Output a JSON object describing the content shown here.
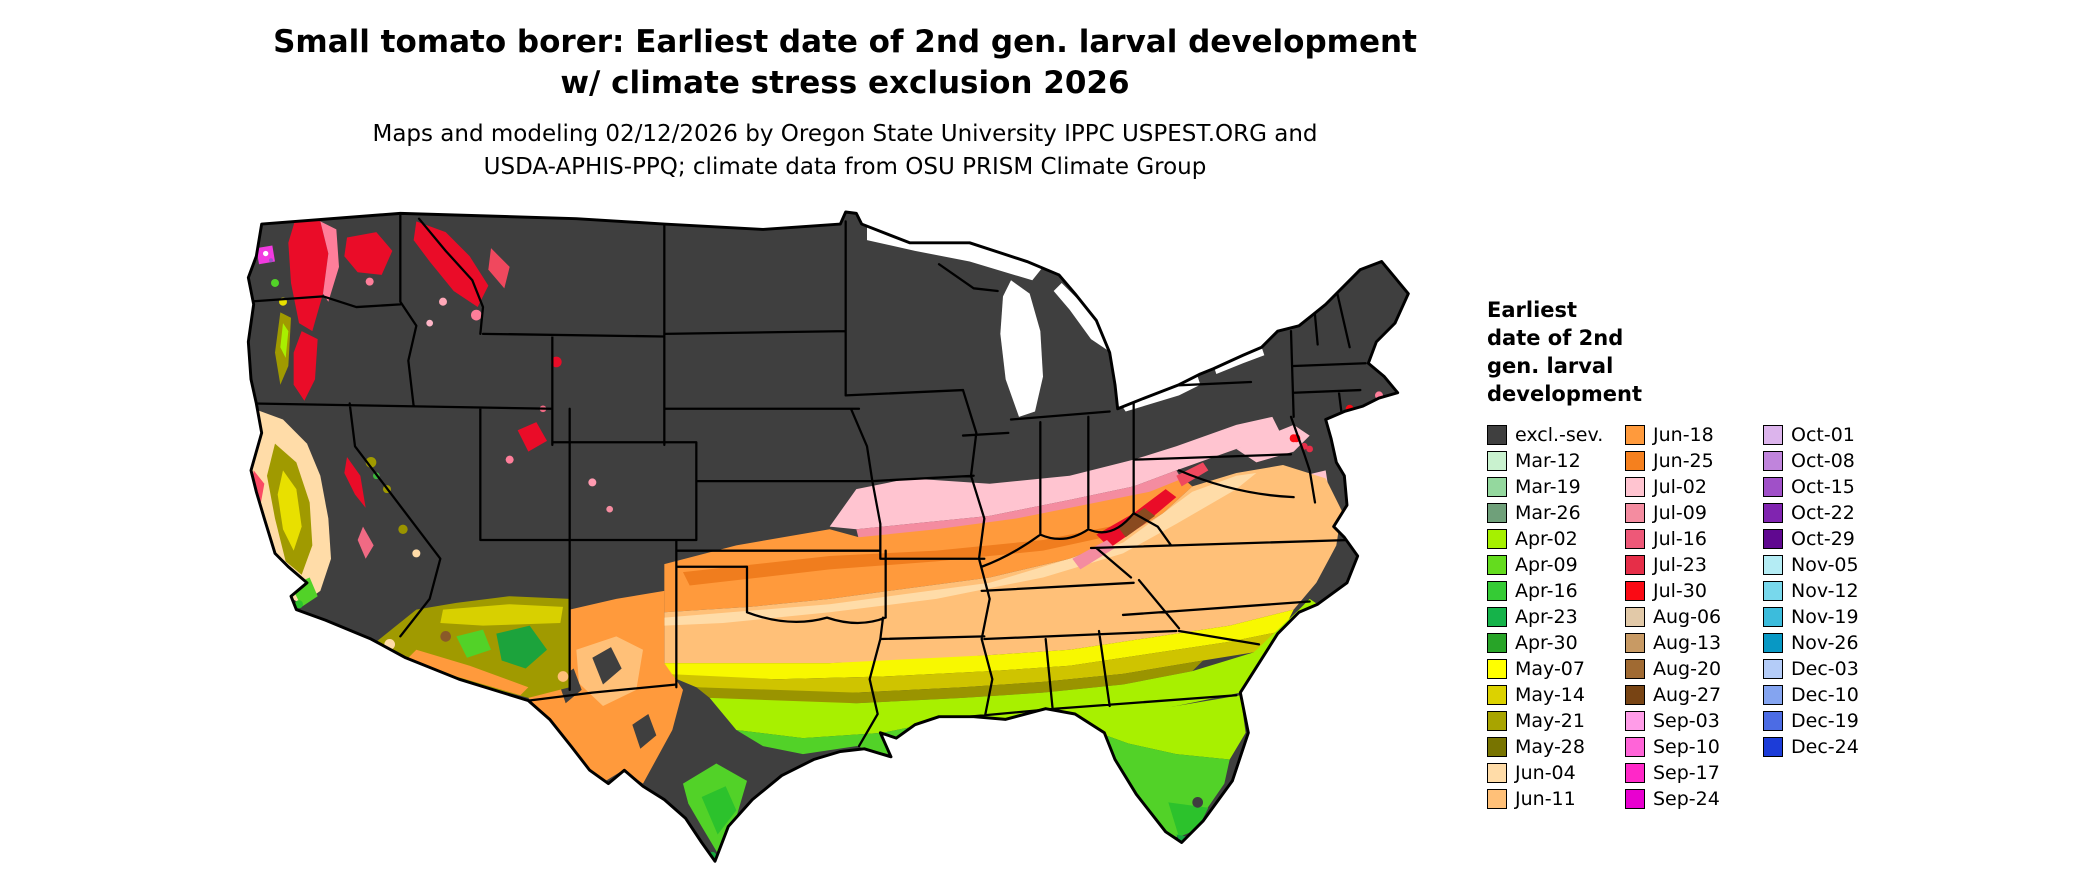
{
  "title": {
    "line1": "Small tomato borer: Earliest date of 2nd gen. larval development",
    "line2": "w/ climate stress exclusion 2026"
  },
  "subtitle": {
    "line1": "Maps and modeling 02/12/2026 by Oregon State University IPPC USPEST.ORG and",
    "line2": "USDA-APHIS-PPQ; climate data from OSU PRISM Climate Group"
  },
  "legend": {
    "title_lines": [
      "Earliest",
      "date of 2nd",
      "gen. larval",
      "development"
    ],
    "columns": [
      {
        "entries": [
          {
            "label": "excl.-sev.",
            "color": "#3f3f3f"
          },
          {
            "label": "Mar-12",
            "color": "#c9f2cf"
          },
          {
            "label": "Mar-19",
            "color": "#94d89e"
          },
          {
            "label": "Mar-26",
            "color": "#6fa07a"
          },
          {
            "label": "Apr-02",
            "color": "#a6f000"
          },
          {
            "label": "Apr-09",
            "color": "#64dc1e"
          },
          {
            "label": "Apr-16",
            "color": "#35cb35"
          },
          {
            "label": "Apr-23",
            "color": "#15b34a"
          },
          {
            "label": "Apr-30",
            "color": "#28a428"
          },
          {
            "label": "May-07",
            "color": "#ffff00"
          },
          {
            "label": "May-14",
            "color": "#dcd200"
          },
          {
            "label": "May-21",
            "color": "#a8a400"
          },
          {
            "label": "May-28",
            "color": "#787400"
          },
          {
            "label": "Jun-04",
            "color": "#ffdca8"
          },
          {
            "label": "Jun-11",
            "color": "#ffc078"
          }
        ]
      },
      {
        "entries": [
          {
            "label": "Jun-18",
            "color": "#ff9a3c"
          },
          {
            "label": "Jun-25",
            "color": "#f5801e"
          },
          {
            "label": "Jul-02",
            "color": "#ffc4d0"
          },
          {
            "label": "Jul-09",
            "color": "#f48ca0"
          },
          {
            "label": "Jul-16",
            "color": "#ee5878"
          },
          {
            "label": "Jul-23",
            "color": "#e62e48"
          },
          {
            "label": "Jul-30",
            "color": "#fa0a14"
          },
          {
            "label": "Aug-06",
            "color": "#e2c9a8"
          },
          {
            "label": "Aug-13",
            "color": "#c89a64"
          },
          {
            "label": "Aug-20",
            "color": "#a06a32"
          },
          {
            "label": "Aug-27",
            "color": "#784414"
          },
          {
            "label": "Sep-03",
            "color": "#ff9ce8"
          },
          {
            "label": "Sep-10",
            "color": "#ff64d8"
          },
          {
            "label": "Sep-17",
            "color": "#ff28c8"
          },
          {
            "label": "Sep-24",
            "color": "#e800d0"
          }
        ]
      },
      {
        "entries": [
          {
            "label": "Oct-01",
            "color": "#dcb4ec"
          },
          {
            "label": "Oct-08",
            "color": "#c084dc"
          },
          {
            "label": "Oct-15",
            "color": "#a050c8"
          },
          {
            "label": "Oct-22",
            "color": "#8024b0"
          },
          {
            "label": "Oct-29",
            "color": "#600890"
          },
          {
            "label": "Nov-05",
            "color": "#b4ecf4"
          },
          {
            "label": "Nov-12",
            "color": "#78d8ec"
          },
          {
            "label": "Nov-19",
            "color": "#3cbcdc"
          },
          {
            "label": "Nov-26",
            "color": "#0898c4"
          },
          {
            "label": "Dec-03",
            "color": "#b4ccf8"
          },
          {
            "label": "Dec-10",
            "color": "#84a4f0"
          },
          {
            "label": "Dec-19",
            "color": "#4c6ce4"
          },
          {
            "label": "Dec-24",
            "color": "#1c3cd8"
          }
        ]
      }
    ]
  }
}
